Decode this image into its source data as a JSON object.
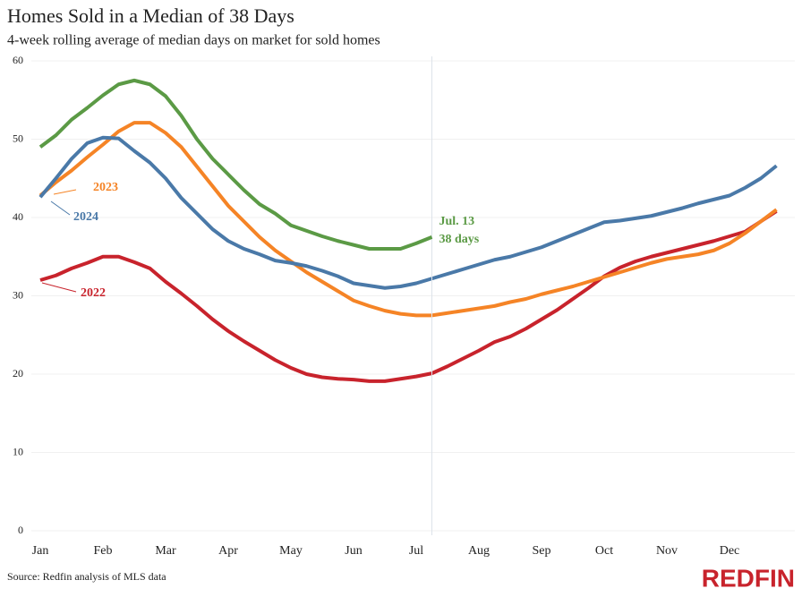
{
  "chart_data": {
    "type": "line",
    "title": "Homes Sold in a Median of 38 Days",
    "subtitle": "4-week rolling average of median days on market for sold homes",
    "source": "Source: Redfin analysis of MLS data",
    "logo": "REDFIN",
    "categories": [
      "Jan",
      null,
      null,
      null,
      "Feb",
      null,
      null,
      null,
      "Mar",
      null,
      null,
      null,
      "Apr",
      null,
      null,
      null,
      "May",
      null,
      null,
      null,
      "Jun",
      null,
      null,
      null,
      "Jul",
      null,
      null,
      null,
      "Aug",
      null,
      null,
      null,
      "Sep",
      null,
      null,
      null,
      "Oct",
      null,
      null,
      null,
      "Nov",
      null,
      null,
      null,
      "Dec",
      null,
      null,
      null
    ],
    "series": [
      {
        "name": "2022",
        "color": "#c8232c",
        "values": [
          32,
          32.6,
          33.5,
          34.2,
          35,
          35,
          34.3,
          33.5,
          31.8,
          30.3,
          28.7,
          27,
          25.5,
          24.2,
          23,
          21.8,
          20.8,
          20,
          19.6,
          19.4,
          19.3,
          19.1,
          19.1,
          19.4,
          19.7,
          20.1,
          21,
          22,
          23,
          24.1,
          24.8,
          25.8,
          27,
          28.2,
          29.6,
          31,
          32.5,
          33.6,
          34.4,
          35,
          35.5,
          36,
          36.5,
          37,
          37.6,
          38.2,
          39.5,
          40.8
        ]
      },
      {
        "name": "2023",
        "color": "#f58426",
        "values": [
          42.8,
          44.5,
          46,
          47.7,
          49.3,
          51,
          52.1,
          52.1,
          50.8,
          49,
          46.5,
          44,
          41.5,
          39.5,
          37.5,
          35.8,
          34.4,
          33,
          31.8,
          30.6,
          29.4,
          28.7,
          28.1,
          27.7,
          27.5,
          27.5,
          27.8,
          28.1,
          28.4,
          28.7,
          29.2,
          29.6,
          30.2,
          30.7,
          31.2,
          31.8,
          32.4,
          33,
          33.6,
          34.2,
          34.7,
          35,
          35.3,
          35.8,
          36.7,
          38,
          39.5,
          41
        ]
      },
      {
        "name": "2024",
        "color": "#4a79a8",
        "values": [
          42.6,
          45,
          47.5,
          49.5,
          50.2,
          50.1,
          48.5,
          47,
          45,
          42.5,
          40.5,
          38.5,
          37,
          36,
          35.3,
          34.5,
          34.2,
          33.8,
          33.2,
          32.5,
          31.6,
          31.3,
          31,
          31.2,
          31.6,
          32.2,
          32.8,
          33.4,
          34,
          34.6,
          35,
          35.6,
          36.2,
          37,
          37.8,
          38.6,
          39.4,
          39.6,
          39.9,
          40.2,
          40.7,
          41.2,
          41.8,
          42.3,
          42.8,
          43.8,
          45,
          46.6
        ]
      },
      {
        "color": "#5b9a45",
        "values": [
          49,
          50.5,
          52.5,
          54,
          55.6,
          57,
          57.5,
          57,
          55.5,
          53,
          50,
          47.5,
          45.5,
          43.5,
          41.7,
          40.5,
          39,
          38.3,
          37.6,
          37,
          36.5,
          36,
          36,
          36,
          36.7,
          37.5,
          null,
          null,
          null,
          null,
          null,
          null,
          null,
          null,
          null,
          null,
          null,
          null,
          null,
          null,
          null,
          null,
          null,
          null,
          null,
          null,
          null,
          null
        ],
        "annotation": [
          "Jul. 13",
          "38 days"
        ]
      }
    ],
    "ylim": [
      0,
      60
    ],
    "yticks": [
      0,
      10,
      20,
      30,
      40,
      50,
      60
    ],
    "grid": true
  }
}
